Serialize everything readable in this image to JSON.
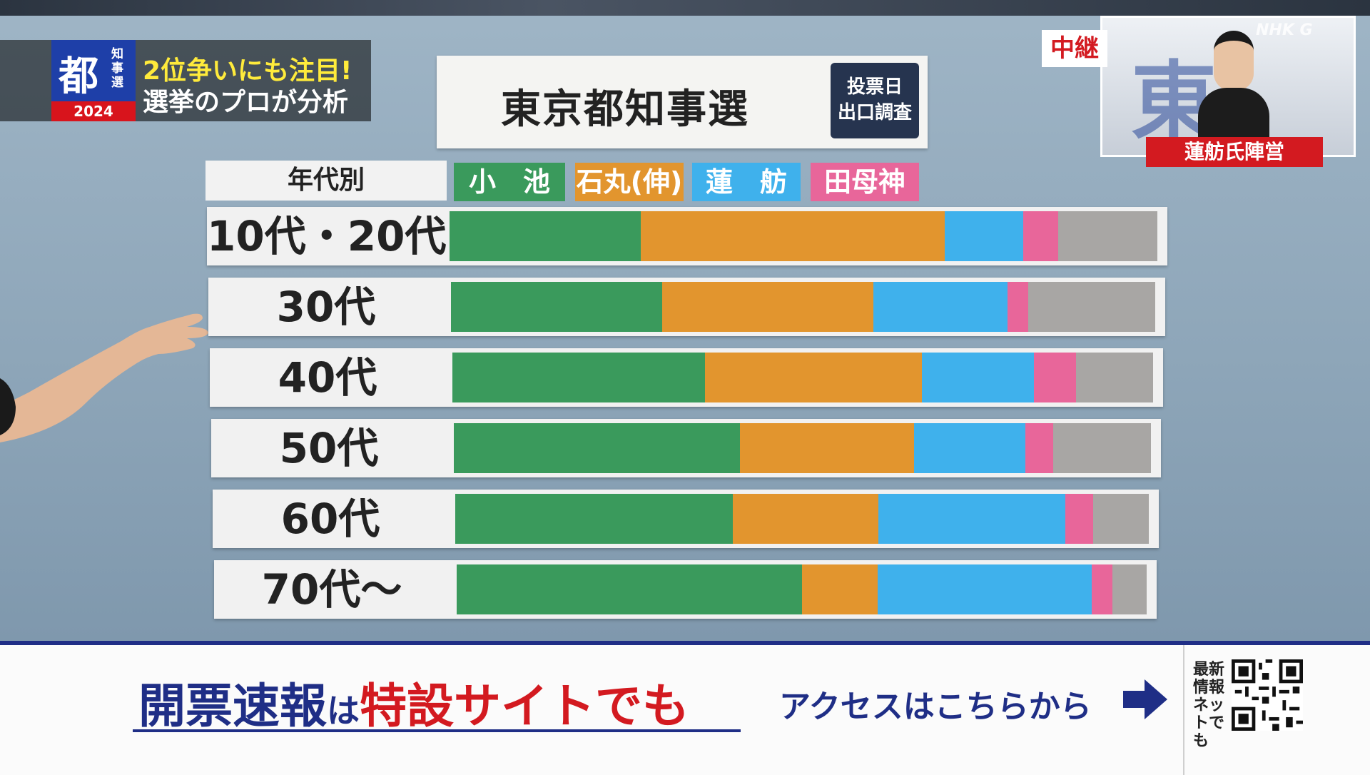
{
  "header": {
    "logo_main": "都",
    "logo_sub": "知事選",
    "logo_year": "2024",
    "line1": "2位争いにも注目!",
    "line2": "選挙のプロが分析"
  },
  "title": {
    "text": "東京都知事選",
    "badge_line1": "投票日",
    "badge_line2": "出口調査"
  },
  "inset": {
    "tag": "中継",
    "caption": "蓮舫氏陣営",
    "watermark": "NHK G",
    "bg_text": "東"
  },
  "banner": {
    "part1": "開票速報",
    "part2": "は",
    "part3": "特設サイトでも",
    "access": "アクセスはこちらから",
    "qr_label": "最新情報ネットでも"
  },
  "colors": {
    "koike": "#3a9a5c",
    "ishimaru": "#e2952e",
    "renho": "#3fb1ec",
    "tamogami": "#e8669a",
    "other": "#a8a6a4"
  },
  "chart_data": {
    "type": "bar",
    "orientation": "horizontal",
    "stacked": true,
    "category_header": "年代別",
    "categories": [
      "10代・20代",
      "30代",
      "40代",
      "50代",
      "60代",
      "70代〜"
    ],
    "series": [
      {
        "name": "小　池",
        "key": "koike",
        "values": [
          27,
          30,
          36,
          41,
          40,
          50
        ]
      },
      {
        "name": "石丸(伸)",
        "key": "ishimaru",
        "values": [
          43,
          30,
          31,
          25,
          21,
          11
        ]
      },
      {
        "name": "蓮　舫",
        "key": "renho",
        "values": [
          11,
          19,
          16,
          16,
          27,
          31
        ]
      },
      {
        "name": "田母神",
        "key": "tamogami",
        "values": [
          5,
          3,
          6,
          4,
          4,
          3
        ]
      },
      {
        "name": "",
        "key": "other",
        "values": [
          14,
          18,
          11,
          14,
          8,
          5
        ]
      }
    ],
    "xlim": [
      0,
      100
    ]
  }
}
